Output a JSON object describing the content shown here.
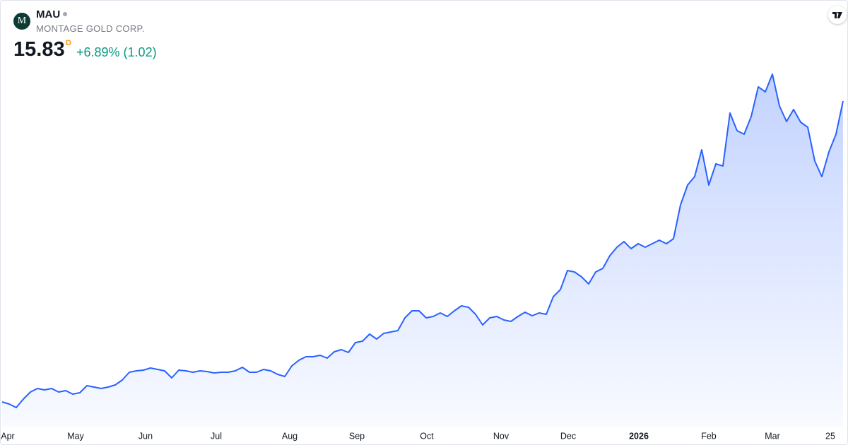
{
  "header": {
    "logo": "M",
    "symbol": "MAU",
    "company": "MONTAGE GOLD CORP.",
    "price": "15.83",
    "price_type": "D",
    "change": "+6.89% (1.02)"
  },
  "chart_data": {
    "type": "area",
    "color": "#2962ff",
    "values": [
      3.05,
      2.96,
      2.81,
      3.17,
      3.47,
      3.62,
      3.56,
      3.62,
      3.47,
      3.53,
      3.38,
      3.44,
      3.74,
      3.68,
      3.62,
      3.68,
      3.77,
      3.98,
      4.31,
      4.37,
      4.4,
      4.49,
      4.43,
      4.37,
      4.07,
      4.4,
      4.37,
      4.31,
      4.37,
      4.34,
      4.28,
      4.31,
      4.31,
      4.37,
      4.52,
      4.31,
      4.31,
      4.43,
      4.37,
      4.22,
      4.13,
      4.58,
      4.82,
      4.97,
      4.97,
      5.03,
      4.91,
      5.18,
      5.27,
      5.15,
      5.57,
      5.63,
      5.93,
      5.72,
      5.96,
      6.02,
      6.08,
      6.62,
      6.92,
      6.92,
      6.62,
      6.68,
      6.83,
      6.68,
      6.92,
      7.13,
      7.07,
      6.77,
      6.32,
      6.62,
      6.68,
      6.53,
      6.47,
      6.68,
      6.86,
      6.71,
      6.83,
      6.77,
      7.52,
      7.82,
      8.63,
      8.57,
      8.36,
      8.06,
      8.57,
      8.72,
      9.26,
      9.62,
      9.86,
      9.56,
      9.77,
      9.62,
      9.77,
      9.92,
      9.77,
      9.98,
      11.42,
      12.26,
      12.62,
      13.76,
      12.26,
      13.16,
      13.07,
      15.32,
      14.57,
      14.42,
      15.17,
      16.43,
      16.22,
      16.97,
      15.62,
      14.96,
      15.47,
      14.93,
      14.72,
      13.28,
      12.62,
      13.67,
      14.42,
      15.83
    ],
    "ylim": [
      2.12,
      17.12
    ],
    "xlim": [
      0,
      119
    ],
    "xticks": [
      {
        "value": 0.7,
        "label": "Apr"
      },
      {
        "value": 10.4,
        "label": "May"
      },
      {
        "value": 20.3,
        "label": "Jun"
      },
      {
        "value": 30.3,
        "label": "Jul"
      },
      {
        "value": 40.7,
        "label": "Aug"
      },
      {
        "value": 50.2,
        "label": "Sep"
      },
      {
        "value": 60.1,
        "label": "Oct"
      },
      {
        "value": 70.6,
        "label": "Nov"
      },
      {
        "value": 80.1,
        "label": "Dec"
      },
      {
        "value": 90.1,
        "label": "2026"
      },
      {
        "value": 100,
        "label": "Feb"
      },
      {
        "value": 109,
        "label": "Mar"
      },
      {
        "value": 117.2,
        "label": "25"
      }
    ]
  }
}
